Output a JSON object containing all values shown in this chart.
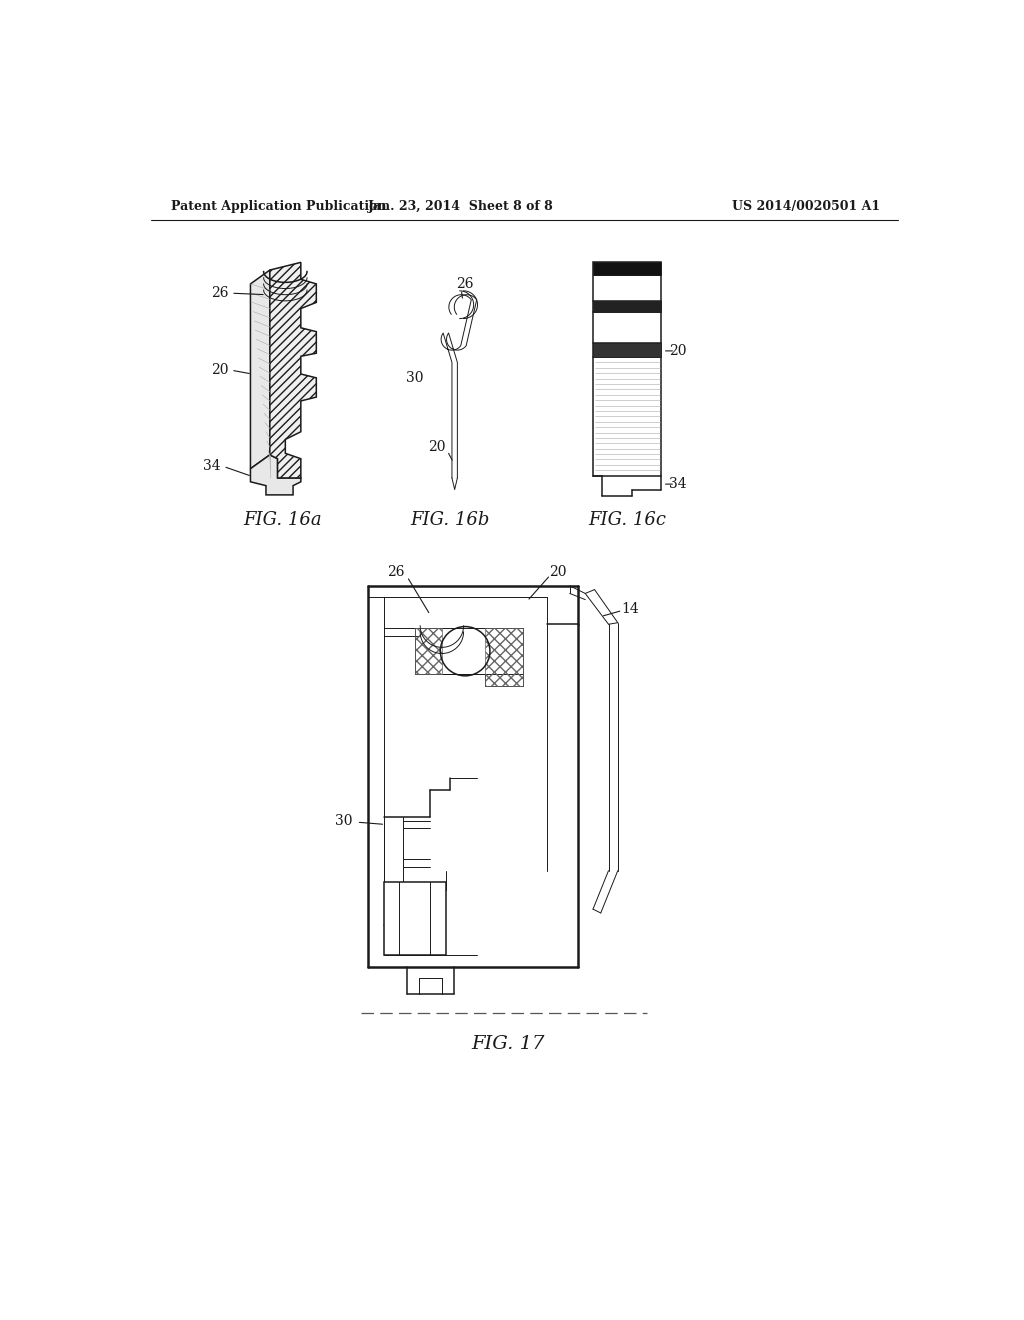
{
  "background_color": "#ffffff",
  "header_left": "Patent Application Publication",
  "header_center": "Jan. 23, 2014  Sheet 8 of 8",
  "header_right": "US 2014/0020501 A1",
  "line_color": "#1a1a1a",
  "label_fontsize": 10,
  "caption_fontsize": 13,
  "fig16a_label": "FIG. 16a",
  "fig16b_label": "FIG. 16b",
  "fig16c_label": "FIG. 16c",
  "fig17_label": "FIG. 17"
}
